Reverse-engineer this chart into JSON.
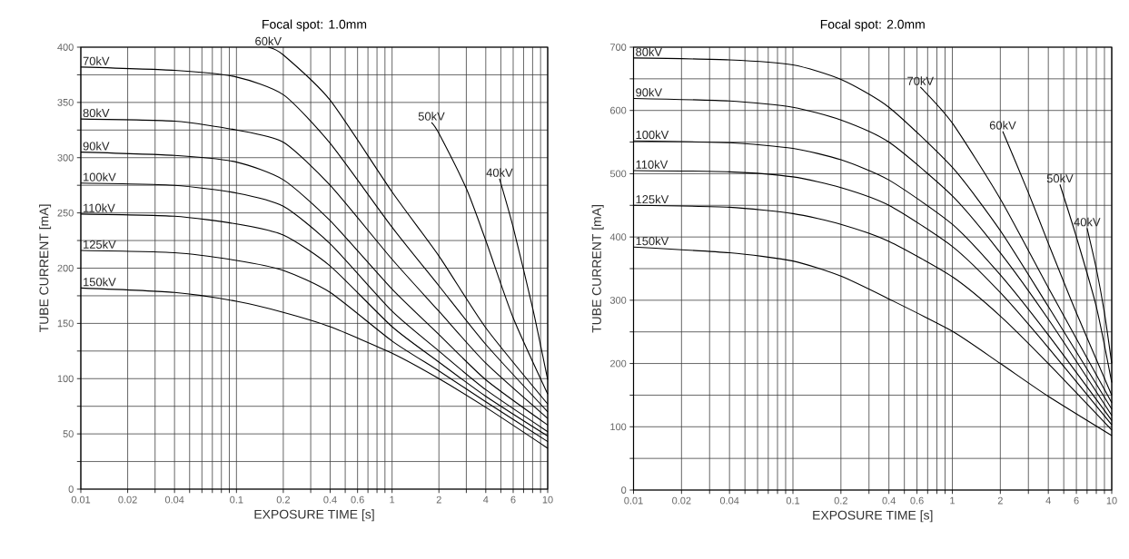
{
  "chart_data": [
    {
      "type": "line",
      "title": "Focal spot: 1.0mm",
      "xlabel": "EXPOSURE TIME [s]",
      "ylabel": "TUBE CURRENT [mA]",
      "log": "x",
      "grid": true,
      "xlim": [
        0.01,
        10
      ],
      "ylim": [
        0,
        400
      ],
      "xticks": [
        0.01,
        0.02,
        {
          "value": 0.03,
          "label": null
        },
        0.04,
        {
          "value": 0.05,
          "label": null
        },
        {
          "value": 0.06,
          "label": null
        },
        {
          "value": 0.07,
          "label": null
        },
        {
          "value": 0.08,
          "label": null
        },
        {
          "value": 0.09,
          "label": null
        },
        0.1,
        0.2,
        {
          "value": 0.3,
          "label": null
        },
        0.4,
        {
          "value": 0.5,
          "label": null
        },
        0.6,
        {
          "value": 0.7,
          "label": null
        },
        {
          "value": 0.8,
          "label": null
        },
        {
          "value": 0.9,
          "label": null
        },
        1,
        2,
        {
          "value": 3,
          "label": null
        },
        4,
        {
          "value": 5,
          "label": null
        },
        6,
        {
          "value": 7,
          "label": null
        },
        {
          "value": 8,
          "label": null
        },
        {
          "value": 9,
          "label": null
        },
        10
      ],
      "yticks": [
        0,
        {
          "value": 25,
          "label": null
        },
        50,
        {
          "value": 75,
          "label": null
        },
        100,
        {
          "value": 125,
          "label": null
        },
        150,
        {
          "value": 175,
          "label": null
        },
        200,
        {
          "value": 225,
          "label": null
        },
        250,
        {
          "value": 275,
          "label": null
        },
        300,
        {
          "value": 325,
          "label": null
        },
        350,
        {
          "value": 375,
          "label": null
        },
        400
      ],
      "series": [
        {
          "name": "40kV",
          "color": "#000000",
          "x": [
            4.9,
            6,
            8,
            10
          ],
          "values": [
            281,
            237,
            164,
            99
          ]
        },
        {
          "name": "50kV",
          "color": "#000000",
          "x": [
            1.79,
            2,
            3,
            4,
            6,
            10
          ],
          "values": [
            332,
            322,
            272,
            225,
            155,
            86
          ]
        },
        {
          "name": "60kV",
          "color": "#000000",
          "x": [
            0.16,
            0.2,
            0.4,
            1,
            2,
            4,
            10
          ],
          "values": [
            400,
            393,
            352,
            269,
            211,
            146,
            77
          ]
        },
        {
          "name": "70kV",
          "color": "#000000",
          "x": [
            0.01,
            0.04,
            0.1,
            0.2,
            0.4,
            1,
            2,
            4,
            10
          ],
          "values": [
            382,
            379,
            373,
            357,
            313,
            237,
            184,
            131,
            70
          ]
        },
        {
          "name": "80kV",
          "color": "#000000",
          "x": [
            0.01,
            0.04,
            0.1,
            0.2,
            0.4,
            1,
            2,
            4,
            10
          ],
          "values": [
            335,
            333,
            325,
            314,
            275,
            208,
            161,
            114,
            64
          ]
        },
        {
          "name": "90kV",
          "color": "#000000",
          "x": [
            0.01,
            0.04,
            0.1,
            0.2,
            0.4,
            1,
            2,
            4,
            10
          ],
          "values": [
            305,
            302,
            296,
            280,
            243,
            181,
            140,
            99,
            58
          ]
        },
        {
          "name": "100kV",
          "color": "#000000",
          "x": [
            0.01,
            0.04,
            0.1,
            0.2,
            0.4,
            1,
            2,
            4,
            10
          ],
          "values": [
            277,
            275,
            268,
            256,
            222,
            161,
            125,
            90,
            52
          ]
        },
        {
          "name": "110kV",
          "color": "#000000",
          "x": [
            0.01,
            0.04,
            0.1,
            0.2,
            0.4,
            1,
            2,
            4,
            10
          ],
          "values": [
            249,
            247,
            240,
            230,
            202,
            147,
            115,
            84,
            48
          ]
        },
        {
          "name": "125kV",
          "color": "#000000",
          "x": [
            0.01,
            0.04,
            0.1,
            0.2,
            0.4,
            1,
            2,
            4,
            10
          ],
          "values": [
            216,
            214,
            207,
            198,
            178,
            134,
            107,
            79,
            43
          ]
        },
        {
          "name": "150kV",
          "color": "#000000",
          "x": [
            0.01,
            0.04,
            0.1,
            0.2,
            0.4,
            1,
            2,
            4,
            10
          ],
          "values": [
            182,
            178,
            170,
            160,
            147,
            123,
            100,
            74,
            37
          ]
        }
      ]
    },
    {
      "type": "line",
      "title": "Focal spot: 2.0mm",
      "xlabel": "EXPOSURE TIME [s]",
      "ylabel": "TUBE CURRENT [mA]",
      "log": "x",
      "grid": true,
      "xlim": [
        0.01,
        10
      ],
      "ylim": [
        0,
        700
      ],
      "xticks": [
        0.01,
        0.02,
        {
          "value": 0.03,
          "label": null
        },
        0.04,
        {
          "value": 0.05,
          "label": null
        },
        {
          "value": 0.06,
          "label": null
        },
        {
          "value": 0.07,
          "label": null
        },
        {
          "value": 0.08,
          "label": null
        },
        {
          "value": 0.09,
          "label": null
        },
        0.1,
        0.2,
        {
          "value": 0.3,
          "label": null
        },
        0.4,
        {
          "value": 0.5,
          "label": null
        },
        0.6,
        {
          "value": 0.7,
          "label": null
        },
        {
          "value": 0.8,
          "label": null
        },
        {
          "value": 0.9,
          "label": null
        },
        1,
        2,
        {
          "value": 3,
          "label": null
        },
        4,
        {
          "value": 5,
          "label": null
        },
        6,
        {
          "value": 7,
          "label": null
        },
        {
          "value": 8,
          "label": null
        },
        {
          "value": 9,
          "label": null
        },
        10
      ],
      "yticks": [
        0,
        {
          "value": 50,
          "label": null
        },
        100,
        {
          "value": 150,
          "label": null
        },
        200,
        {
          "value": 250,
          "label": null
        },
        300,
        {
          "value": 350,
          "label": null
        },
        400,
        {
          "value": 450,
          "label": null
        },
        500,
        {
          "value": 550,
          "label": null
        },
        600,
        {
          "value": 650,
          "label": null
        },
        700
      ],
      "series": [
        {
          "name": "40kV",
          "color": "#000000",
          "x": [
            7.0,
            8,
            9,
            10
          ],
          "values": [
            414,
            350,
            280,
            200
          ]
        },
        {
          "name": "50kV",
          "color": "#000000",
          "x": [
            4.73,
            6,
            8,
            10
          ],
          "values": [
            483,
            400,
            290,
            170
          ]
        },
        {
          "name": "60kV",
          "color": "#000000",
          "x": [
            2.07,
            3,
            4,
            6,
            10
          ],
          "values": [
            567,
            470,
            390,
            280,
            150
          ]
        },
        {
          "name": "70kV",
          "color": "#000000",
          "x": [
            0.63,
            1,
            2,
            4,
            10
          ],
          "values": [
            637,
            580,
            460,
            320,
            138
          ]
        },
        {
          "name": "80kV",
          "color": "#000000",
          "x": [
            0.01,
            0.04,
            0.1,
            0.2,
            0.4,
            1,
            2,
            4,
            10
          ],
          "values": [
            683,
            680,
            672,
            649,
            605,
            510,
            410,
            290,
            128
          ]
        },
        {
          "name": "90kV",
          "color": "#000000",
          "x": [
            0.01,
            0.04,
            0.1,
            0.2,
            0.4,
            1,
            2,
            4,
            10
          ],
          "values": [
            619,
            615,
            605,
            585,
            550,
            465,
            375,
            270,
            118
          ]
        },
        {
          "name": "100kV",
          "color": "#000000",
          "x": [
            0.01,
            0.04,
            0.1,
            0.2,
            0.4,
            1,
            2,
            4,
            10
          ],
          "values": [
            552,
            549,
            540,
            522,
            490,
            420,
            340,
            245,
            110
          ]
        },
        {
          "name": "110kV",
          "color": "#000000",
          "x": [
            0.01,
            0.04,
            0.1,
            0.2,
            0.4,
            1,
            2,
            4,
            10
          ],
          "values": [
            505,
            503,
            495,
            478,
            450,
            385,
            312,
            225,
            103
          ]
        },
        {
          "name": "125kV",
          "color": "#000000",
          "x": [
            0.01,
            0.04,
            0.1,
            0.2,
            0.4,
            1,
            2,
            4,
            10
          ],
          "values": [
            450,
            447,
            437,
            420,
            393,
            337,
            275,
            200,
            95
          ]
        },
        {
          "name": "150kV",
          "color": "#000000",
          "x": [
            0.01,
            0.04,
            0.1,
            0.2,
            0.4,
            1,
            2,
            4,
            10
          ],
          "values": [
            384,
            375,
            362,
            338,
            302,
            251,
            200,
            148,
            86
          ]
        }
      ]
    }
  ]
}
